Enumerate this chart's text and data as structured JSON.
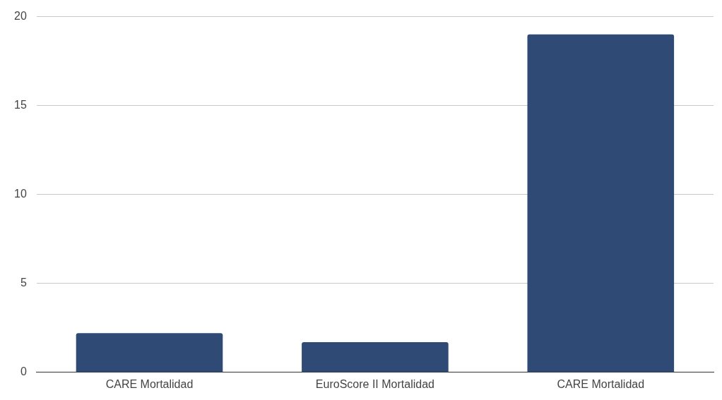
{
  "chart_data": {
    "type": "bar",
    "categories": [
      "CARE Mortalidad",
      "EuroScore II Mortalidad",
      "CARE Mortalidad"
    ],
    "values": [
      2.2,
      1.7,
      19
    ],
    "color": "#2e4a75",
    "ylim": [
      0,
      20
    ],
    "yticks": [
      0,
      5,
      10,
      15,
      20
    ],
    "grid": "y",
    "legend": false
  }
}
